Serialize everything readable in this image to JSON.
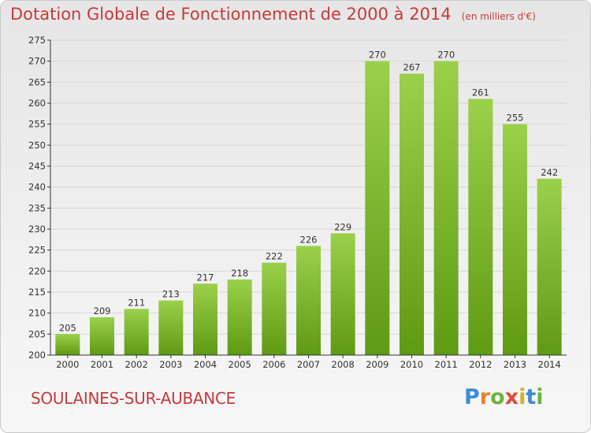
{
  "header": {
    "title": "Dotation Globale de Fonctionnement de 2000 à 2014",
    "subtitle": "(en milliers d'€)"
  },
  "footer": {
    "commune": "SOULAINES-SUR-AUBANCE",
    "logo_letters": [
      "P",
      "r",
      "o",
      "x",
      "i",
      "t",
      "i"
    ],
    "logo_colors": [
      "#3d8bd6",
      "#e9822a",
      "#6cb33f",
      "#e04a3a",
      "#d7b21e",
      "#3d8bd6",
      "#6cb33f"
    ]
  },
  "chart_data": {
    "type": "bar",
    "title": "Dotation Globale de Fonctionnement de 2000 à 2014",
    "categories": [
      "2000",
      "2001",
      "2002",
      "2003",
      "2004",
      "2005",
      "2006",
      "2007",
      "2008",
      "2009",
      "2010",
      "2011",
      "2012",
      "2013",
      "2014"
    ],
    "values": [
      205,
      209,
      211,
      213,
      217,
      218,
      222,
      226,
      229,
      270,
      267,
      270,
      261,
      255,
      242
    ],
    "ylim": [
      200,
      275
    ],
    "yticks": [
      200,
      205,
      210,
      215,
      220,
      225,
      230,
      235,
      240,
      245,
      250,
      255,
      260,
      265,
      270,
      275
    ],
    "grid": true,
    "colors": {
      "bar_top": "#9bd04a",
      "bar_bottom": "#5f9a13",
      "grid": "#d7d7d7",
      "axis": "#333333"
    }
  }
}
